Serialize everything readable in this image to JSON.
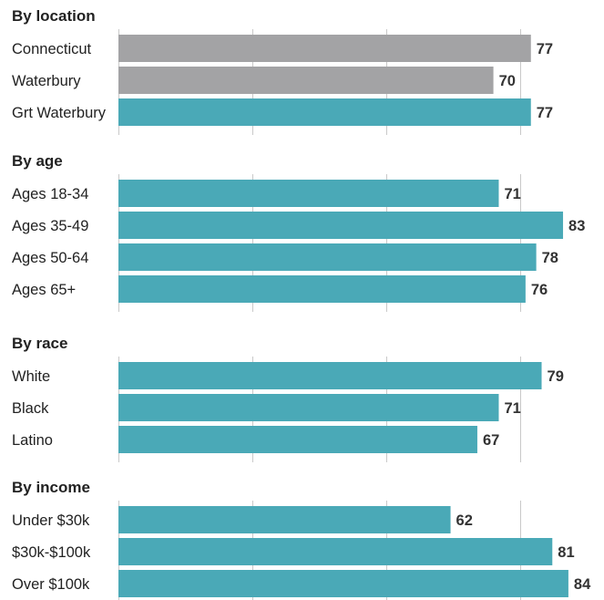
{
  "chart_data": {
    "type": "bar",
    "orientation": "horizontal",
    "xlim": [
      0,
      85
    ],
    "gridlines_at": [
      0,
      25,
      50,
      75
    ],
    "grid": true,
    "colors": {
      "highlight": "#4aa9b7",
      "comparison": "#a3a3a5"
    },
    "groups": [
      {
        "title": "By location",
        "bars": [
          {
            "label": "Connecticut",
            "value": 77,
            "color": "comparison"
          },
          {
            "label": "Waterbury",
            "value": 70,
            "color": "comparison"
          },
          {
            "label": "Grt Waterbury",
            "value": 77,
            "color": "highlight"
          }
        ]
      },
      {
        "title": "By age",
        "bars": [
          {
            "label": "Ages 18-34",
            "value": 71,
            "color": "highlight"
          },
          {
            "label": "Ages 35-49",
            "value": 83,
            "color": "highlight"
          },
          {
            "label": "Ages 50-64",
            "value": 78,
            "color": "highlight"
          },
          {
            "label": "Ages 65+",
            "value": 76,
            "color": "highlight"
          }
        ]
      },
      {
        "title": "By race",
        "bars": [
          {
            "label": "White",
            "value": 79,
            "color": "highlight"
          },
          {
            "label": "Black",
            "value": 71,
            "color": "highlight"
          },
          {
            "label": "Latino",
            "value": 67,
            "color": "highlight"
          }
        ]
      },
      {
        "title": "By income",
        "bars": [
          {
            "label": "Under $30k",
            "value": 62,
            "color": "highlight"
          },
          {
            "label": "$30k-$100k",
            "value": 81,
            "color": "highlight"
          },
          {
            "label": "Over $100k",
            "value": 84,
            "color": "highlight"
          }
        ]
      }
    ]
  }
}
